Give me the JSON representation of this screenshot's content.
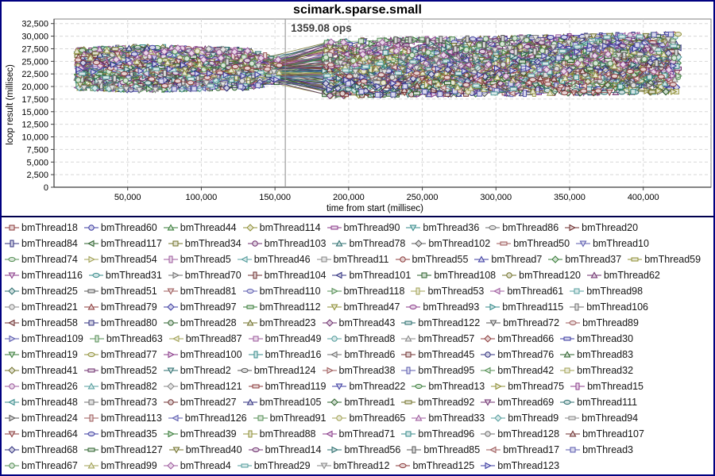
{
  "title": "scimark.sparse.small",
  "annotation": {
    "label": "1359.08 ops",
    "x_value": 157000
  },
  "axes": {
    "x": {
      "label": "time from start (millisec)",
      "min": 0,
      "max": 446000,
      "ticks": [
        {
          "v": 50000,
          "label": "50,000"
        },
        {
          "v": 100000,
          "label": "100,000"
        },
        {
          "v": 150000,
          "label": "150,000"
        },
        {
          "v": 200000,
          "label": "200,000"
        },
        {
          "v": 250000,
          "label": "250,000"
        },
        {
          "v": 300000,
          "label": "300,000"
        },
        {
          "v": 350000,
          "label": "350,000"
        },
        {
          "v": 400000,
          "label": "400,000"
        }
      ]
    },
    "y": {
      "label": "loop result (millisec)",
      "min": 0,
      "max": 33400,
      "ticks": [
        {
          "v": 0,
          "label": "0"
        },
        {
          "v": 2500,
          "label": "2,500"
        },
        {
          "v": 5000,
          "label": "5,000"
        },
        {
          "v": 7500,
          "label": "7,500"
        },
        {
          "v": 10000,
          "label": "10,000"
        },
        {
          "v": 12500,
          "label": "12,500"
        },
        {
          "v": 15000,
          "label": "15,000"
        },
        {
          "v": 17500,
          "label": "17,500"
        },
        {
          "v": 20000,
          "label": "20,000"
        },
        {
          "v": 22500,
          "label": "22,500"
        },
        {
          "v": 25000,
          "label": "25,000"
        },
        {
          "v": 27500,
          "label": "27,500"
        },
        {
          "v": 30000,
          "label": "30,000"
        },
        {
          "v": 32500,
          "label": "32,500"
        }
      ]
    }
  },
  "chart_data": {
    "type": "line",
    "title": "scimark.sparse.small",
    "xlabel": "time from start (millisec)",
    "ylabel": "loop result (millisec)",
    "xlim": [
      0,
      446000
    ],
    "ylim": [
      0,
      33400
    ],
    "grid": "dashed-both-axes",
    "legend_position": "bottom",
    "series_count": 128,
    "annotation": {
      "text": "1359.08 ops",
      "x": 157000,
      "line": "vertical-full-height"
    },
    "values_note": "128 overlapping per-thread series; individual points unlabeled in source image. Band envelope (min/max of loop result vs time) estimated from pixels; all series converge toward ~22000-25000 at the 157000 ms marker line then fan out to ~18000-30500.",
    "band_envelope": [
      {
        "x": 16000,
        "y_min": 19800,
        "y_max": 27200
      },
      {
        "x": 60000,
        "y_min": 19300,
        "y_max": 27800
      },
      {
        "x": 100000,
        "y_min": 19600,
        "y_max": 27500
      },
      {
        "x": 130000,
        "y_min": 19800,
        "y_max": 27200
      },
      {
        "x": 150000,
        "y_min": 20800,
        "y_max": 25500
      },
      {
        "x": 160000,
        "y_min": 21300,
        "y_max": 24800
      },
      {
        "x": 186000,
        "y_min": 18200,
        "y_max": 28800
      },
      {
        "x": 230000,
        "y_min": 18400,
        "y_max": 29200
      },
      {
        "x": 300000,
        "y_min": 18600,
        "y_max": 29500
      },
      {
        "x": 370000,
        "y_min": 18800,
        "y_max": 30000
      },
      {
        "x": 425000,
        "y_min": 19000,
        "y_max": 30400
      }
    ],
    "marker_shape_cycle": [
      "square",
      "circle",
      "triangle-up",
      "diamond",
      "rect-h",
      "triangle-down",
      "ellipse-h",
      "triangle-right",
      "rect-v",
      "triangle-left"
    ],
    "palette_cycle": [
      "#8b3a3a",
      "#3a3aa0",
      "#357a35",
      "#8f8f35",
      "#8a3a8a",
      "#358a8a",
      "#6e6e6e"
    ]
  },
  "legend": {
    "rows": [
      [
        "bmThread18",
        "bmThread60",
        "bmThread44",
        "bmThread114",
        "bmThread90",
        "bmThread36",
        "bmThread86",
        "bmThread20"
      ],
      [
        "bmThread84",
        "bmThread117",
        "bmThread34",
        "bmThread103",
        "bmThread78",
        "bmThread102",
        "bmThread50",
        "bmThread10"
      ],
      [
        "bmThread74",
        "bmThread54",
        "bmThread5",
        "bmThread46",
        "bmThread11",
        "bmThread55",
        "bmThread7",
        "bmThread37",
        "bmThread59"
      ],
      [
        "bmThread116",
        "bmThread31",
        "bmThread70",
        "bmThread104",
        "bmThread101",
        "bmThread108",
        "bmThread120",
        "bmThread62"
      ],
      [
        "bmThread25",
        "bmThread51",
        "bmThread81",
        "bmThread110",
        "bmThread118",
        "bmThread53",
        "bmThread61",
        "bmThread98"
      ],
      [
        "bmThread21",
        "bmThread79",
        "bmThread97",
        "bmThread112",
        "bmThread47",
        "bmThread93",
        "bmThread115",
        "bmThread106"
      ],
      [
        "bmThread58",
        "bmThread80",
        "bmThread28",
        "bmThread23",
        "bmThread43",
        "bmThread122",
        "bmThread72",
        "bmThread89"
      ],
      [
        "bmThread109",
        "bmThread63",
        "bmThread87",
        "bmThread49",
        "bmThread8",
        "bmThread57",
        "bmThread66",
        "bmThread30"
      ],
      [
        "bmThread19",
        "bmThread77",
        "bmThread100",
        "bmThread16",
        "bmThread6",
        "bmThread45",
        "bmThread76",
        "bmThread83"
      ],
      [
        "bmThread41",
        "bmThread52",
        "bmThread2",
        "bmThread124",
        "bmThread38",
        "bmThread95",
        "bmThread42",
        "bmThread32"
      ],
      [
        "bmThread26",
        "bmThread82",
        "bmThread121",
        "bmThread119",
        "bmThread22",
        "bmThread13",
        "bmThread75",
        "bmThread15"
      ],
      [
        "bmThread48",
        "bmThread73",
        "bmThread27",
        "bmThread105",
        "bmThread1",
        "bmThread92",
        "bmThread69",
        "bmThread111"
      ],
      [
        "bmThread24",
        "bmThread113",
        "bmThread126",
        "bmThread91",
        "bmThread65",
        "bmThread33",
        "bmThread9",
        "bmThread94"
      ],
      [
        "bmThread64",
        "bmThread35",
        "bmThread39",
        "bmThread88",
        "bmThread71",
        "bmThread96",
        "bmThread128",
        "bmThread107"
      ],
      [
        "bmThread68",
        "bmThread127",
        "bmThread40",
        "bmThread14",
        "bmThread56",
        "bmThread85",
        "bmThread17",
        "bmThread3"
      ],
      [
        "bmThread67",
        "bmThread99",
        "bmThread4",
        "bmThread29",
        "bmThread12",
        "bmThread125",
        "bmThread123"
      ]
    ]
  },
  "colors": {
    "frame": "#000080",
    "legend_divider": "#00004d",
    "grid": "#d7d7d7",
    "plot_outline": "#808080",
    "axis": "#3c3c3c",
    "annotation_line": "#8a8a8a",
    "background": "#ffffff"
  }
}
